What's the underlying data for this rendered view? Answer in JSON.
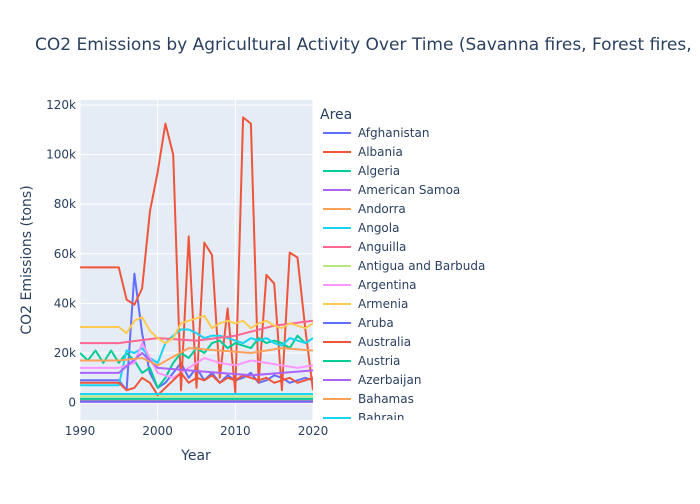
{
  "chart_data": {
    "type": "line",
    "title": "CO2 Emissions by Agricultural Activity Over Time (Savanna fires, Forest fires,",
    "xlabel": "Year",
    "ylabel": "CO2 Emissions (tons)",
    "xlim": [
      1990,
      2020
    ],
    "ylim": [
      -7000,
      122000
    ],
    "x_ticks": [
      1990,
      2000,
      2010,
      2020
    ],
    "x_tick_labels": [
      "1990",
      "2000",
      "2010",
      "2020"
    ],
    "y_ticks": [
      0,
      20000,
      40000,
      60000,
      80000,
      100000,
      120000
    ],
    "y_tick_labels": [
      "0",
      "20k",
      "40k",
      "60k",
      "80k",
      "100k",
      "120k"
    ],
    "grid": true,
    "legend_title": "Area",
    "legend_position": "right",
    "series": [
      {
        "name": "Afghanistan",
        "color": "#636efa",
        "x": [
          1990,
          1995,
          1996,
          1997,
          1998,
          1999,
          2000,
          2001,
          2002,
          2003,
          2004,
          2005,
          2006,
          2007,
          2008,
          2009,
          2010,
          2011,
          2012,
          2013,
          2014,
          2015,
          2016,
          2017,
          2018,
          2019,
          2020
        ],
        "y": [
          9000,
          9000,
          5000,
          52000,
          28000,
          12000,
          6000,
          8000,
          12000,
          16000,
          10000,
          14000,
          9000,
          12000,
          8000,
          11000,
          9000,
          10000,
          12000,
          8000,
          9000,
          11000,
          10000,
          8000,
          9000,
          10000,
          9000
        ]
      },
      {
        "name": "Albania",
        "color": "#EF553B",
        "x": [
          1990,
          1995,
          1996,
          1997,
          1998,
          1999,
          2000,
          2001,
          2002,
          2003,
          2004,
          2005,
          2006,
          2007,
          2008,
          2009,
          2010,
          2011,
          2012,
          2013,
          2014,
          2015,
          2016,
          2017,
          2018,
          2019,
          2020
        ],
        "y": [
          54500,
          54500,
          41500,
          39500,
          46000,
          77000,
          93000,
          112500,
          100000,
          5000,
          67000,
          6000,
          64500,
          59500,
          10000,
          38000,
          4000,
          115000,
          112500,
          8000,
          51500,
          48000,
          5000,
          60500,
          58500,
          30000,
          5000
        ]
      },
      {
        "name": "Algeria",
        "color": "#00cc96",
        "x": [
          1990,
          1991,
          1992,
          1993,
          1994,
          1995,
          1996,
          1997,
          1998,
          1999,
          2000,
          2001,
          2002,
          2003,
          2004,
          2005,
          2006,
          2007,
          2008,
          2009,
          2010,
          2011,
          2012,
          2013,
          2014,
          2015,
          2016,
          2017,
          2018,
          2019,
          2020
        ],
        "y": [
          20000,
          17000,
          21000,
          16000,
          21000,
          16000,
          20000,
          17000,
          12000,
          14000,
          6000,
          10000,
          16000,
          20000,
          18000,
          22000,
          20000,
          24000,
          25000,
          22000,
          24000,
          23000,
          22000,
          26000,
          24000,
          25000,
          24000,
          22000,
          27000,
          24000,
          26000
        ]
      },
      {
        "name": "American Samoa",
        "color": "#ab63fa",
        "x": [
          1990,
          2000,
          2010,
          2020
        ],
        "y": [
          300,
          300,
          300,
          300
        ]
      },
      {
        "name": "Andorra",
        "color": "#FFA15A",
        "x": [
          1990,
          2000,
          2010,
          2020
        ],
        "y": [
          800,
          800,
          800,
          800
        ]
      },
      {
        "name": "Angola",
        "color": "#19d3f3",
        "x": [
          1990,
          1995,
          1996,
          1997,
          1998,
          1999,
          2000,
          2001,
          2002,
          2003,
          2004,
          2005,
          2006,
          2007,
          2008,
          2009,
          2010,
          2011,
          2012,
          2013,
          2014,
          2015,
          2016,
          2017,
          2018,
          2019,
          2020
        ],
        "y": [
          7000,
          7000,
          21000,
          20000,
          22000,
          18000,
          16000,
          24000,
          27000,
          29500,
          29500,
          28000,
          26000,
          27000,
          27000,
          26000,
          25000,
          24000,
          26000,
          25000,
          26000,
          24000,
          23000,
          26000,
          25000,
          24000,
          26000
        ]
      },
      {
        "name": "Anguilla",
        "color": "#FF6692",
        "x": [
          1990,
          1995,
          2000,
          2005,
          2010,
          2015,
          2020
        ],
        "y": [
          24000,
          24000,
          26000,
          25000,
          27000,
          31000,
          33000
        ]
      },
      {
        "name": "Antigua and Barbuda",
        "color": "#B6E880",
        "x": [
          1990,
          2000,
          2010,
          2020
        ],
        "y": [
          2500,
          2500,
          2500,
          2500
        ]
      },
      {
        "name": "Argentina",
        "color": "#FF97FF",
        "x": [
          1990,
          1995,
          1997,
          1998,
          2000,
          2002,
          2004,
          2006,
          2008,
          2010,
          2012,
          2014,
          2016,
          2018,
          2020
        ],
        "y": [
          14000,
          14000,
          16000,
          24000,
          12000,
          10000,
          14000,
          18000,
          16000,
          15000,
          17000,
          16000,
          15000,
          14000,
          15000
        ]
      },
      {
        "name": "Armenia",
        "color": "#FECB52",
        "x": [
          1990,
          1995,
          1996,
          1997,
          1998,
          1999,
          2000,
          2001,
          2002,
          2003,
          2004,
          2005,
          2006,
          2007,
          2008,
          2009,
          2010,
          2011,
          2012,
          2013,
          2014,
          2015,
          2016,
          2017,
          2018,
          2019,
          2020
        ],
        "y": [
          30500,
          30500,
          28000,
          33000,
          34500,
          29000,
          26000,
          24000,
          26000,
          32000,
          33000,
          34000,
          35000,
          30000,
          32000,
          33000,
          32000,
          33000,
          30000,
          32000,
          33000,
          31000,
          30000,
          32000,
          31000,
          30000,
          32000
        ]
      },
      {
        "name": "Aruba",
        "color": "#636efa",
        "x": [
          1990,
          2000,
          2010,
          2020
        ],
        "y": [
          500,
          500,
          500,
          500
        ]
      },
      {
        "name": "Australia",
        "color": "#EF553B",
        "x": [
          1990,
          1995,
          1996,
          1997,
          1998,
          1999,
          2000,
          2001,
          2002,
          2003,
          2004,
          2005,
          2006,
          2007,
          2008,
          2009,
          2010,
          2011,
          2012,
          2013,
          2014,
          2015,
          2016,
          2017,
          2018,
          2019,
          2020
        ],
        "y": [
          8000,
          8000,
          5000,
          6000,
          10000,
          8000,
          3000,
          6000,
          9000,
          12000,
          8000,
          10000,
          9000,
          11000,
          8000,
          10000,
          9000,
          11000,
          10000,
          9000,
          10000,
          8000,
          9000,
          10000,
          8000,
          9000,
          10000
        ]
      },
      {
        "name": "Austria",
        "color": "#00cc96",
        "x": [
          1990,
          2000,
          2010,
          2020
        ],
        "y": [
          1500,
          1500,
          1500,
          1500
        ]
      },
      {
        "name": "Azerbaijan",
        "color": "#ab63fa",
        "x": [
          1990,
          1995,
          1998,
          2000,
          2004,
          2008,
          2012,
          2016,
          2020
        ],
        "y": [
          12000,
          12000,
          20000,
          14000,
          13000,
          12000,
          11000,
          12000,
          13000
        ]
      },
      {
        "name": "Bahamas",
        "color": "#FFA15A",
        "x": [
          1990,
          1995,
          1998,
          2000,
          2004,
          2008,
          2012,
          2016,
          2020
        ],
        "y": [
          17000,
          17000,
          18000,
          15000,
          22000,
          21000,
          20000,
          22000,
          21000
        ]
      },
      {
        "name": "Bahrain",
        "color": "#19d3f3",
        "x": [
          1990,
          2000,
          2010,
          2020
        ],
        "y": [
          3500,
          3500,
          3500,
          3500
        ]
      }
    ]
  }
}
